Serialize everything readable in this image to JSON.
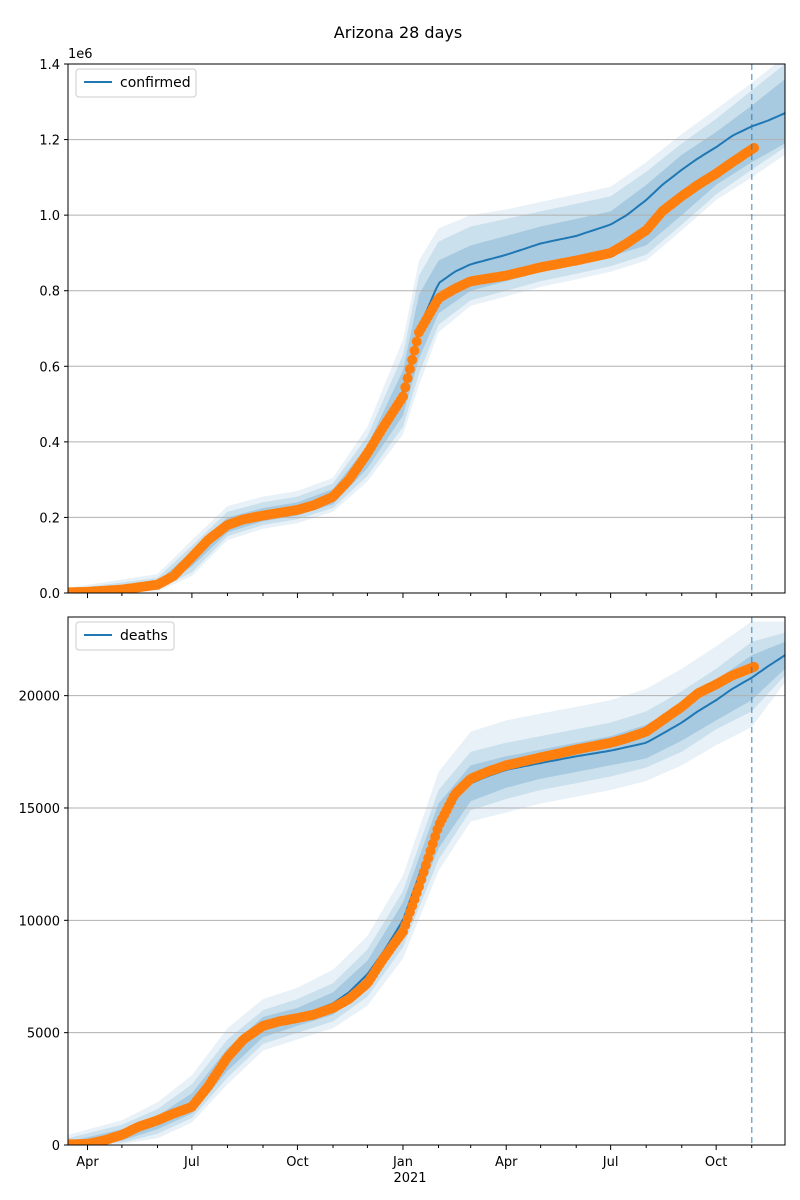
{
  "title": "Arizona 28 days",
  "colors": {
    "model": "#1f77b4",
    "observed": "#ff7f0e",
    "band": "#1f77b4",
    "grid": "#b0b0b0",
    "vline": "#1f77b4"
  },
  "chart_data": [
    {
      "type": "line",
      "name": "confirmed",
      "legend": "confirmed",
      "legend_placement": "upper-left",
      "offset_label": "1e6",
      "grid": "horizontal",
      "xlim": [
        "2020-03-15",
        "2021-11-30"
      ],
      "ylim": [
        0,
        1400000
      ],
      "yticks": [
        0,
        200000,
        400000,
        600000,
        800000,
        1000000,
        1200000,
        1400000
      ],
      "ytick_labels": [
        "0.0",
        "0.2",
        "0.4",
        "0.6",
        "0.8",
        "1.0",
        "1.2",
        "1.4"
      ],
      "forecast_start": "2021-11-01",
      "model": {
        "dates": [
          "2020-03-15",
          "2020-05-01",
          "2020-06-01",
          "2020-07-01",
          "2020-07-15",
          "2020-08-01",
          "2020-08-15",
          "2020-09-01",
          "2020-10-01",
          "2020-11-01",
          "2020-11-15",
          "2020-12-01",
          "2020-12-15",
          "2021-01-01",
          "2021-01-15",
          "2021-02-01",
          "2021-02-15",
          "2021-03-01",
          "2021-04-01",
          "2021-05-01",
          "2021-06-01",
          "2021-07-01",
          "2021-07-15",
          "2021-08-01",
          "2021-08-15",
          "2021-09-01",
          "2021-09-15",
          "2021-10-01",
          "2021-10-15",
          "2021-11-01",
          "2021-11-15",
          "2021-11-30"
        ],
        "values": [
          3000,
          6000,
          20000,
          90000,
          130000,
          175000,
          195000,
          205000,
          220000,
          255000,
          300000,
          360000,
          430000,
          530000,
          700000,
          820000,
          850000,
          870000,
          895000,
          925000,
          945000,
          975000,
          1000000,
          1040000,
          1080000,
          1120000,
          1150000,
          1180000,
          1210000,
          1235000,
          1250000,
          1270000
        ]
      },
      "bands": [
        {
          "dates": [
            "2020-03-15",
            "2020-06-01",
            "2020-07-01",
            "2020-08-01",
            "2020-09-01",
            "2020-10-01",
            "2020-11-01",
            "2020-12-01",
            "2021-01-01",
            "2021-01-15",
            "2021-02-01",
            "2021-03-01",
            "2021-04-01",
            "2021-05-01",
            "2021-06-01",
            "2021-07-01",
            "2021-08-01",
            "2021-09-01",
            "2021-10-01",
            "2021-11-01",
            "2021-11-30"
          ],
          "lower": [
            1000,
            12000,
            70000,
            160000,
            190000,
            205000,
            235000,
            330000,
            470000,
            620000,
            740000,
            800000,
            825000,
            850000,
            870000,
            890000,
            920000,
            1000000,
            1080000,
            1140000,
            1190000
          ],
          "upper": [
            6000,
            30000,
            110000,
            200000,
            225000,
            240000,
            275000,
            390000,
            590000,
            790000,
            880000,
            920000,
            945000,
            970000,
            990000,
            1010000,
            1080000,
            1160000,
            1220000,
            1290000,
            1360000
          ]
        },
        {
          "dates": [
            "2020-03-15",
            "2020-06-01",
            "2020-07-01",
            "2020-08-01",
            "2020-09-01",
            "2020-10-01",
            "2020-11-01",
            "2020-12-01",
            "2021-01-01",
            "2021-01-15",
            "2021-02-01",
            "2021-03-01",
            "2021-04-01",
            "2021-05-01",
            "2021-06-01",
            "2021-07-01",
            "2021-08-01",
            "2021-09-01",
            "2021-10-01",
            "2021-11-01",
            "2021-11-30"
          ],
          "lower": [
            0,
            8000,
            55000,
            150000,
            180000,
            195000,
            225000,
            310000,
            440000,
            580000,
            710000,
            775000,
            800000,
            825000,
            845000,
            865000,
            895000,
            975000,
            1055000,
            1120000,
            1180000
          ],
          "upper": [
            10000,
            40000,
            125000,
            215000,
            240000,
            255000,
            290000,
            415000,
            630000,
            840000,
            930000,
            970000,
            990000,
            1010000,
            1030000,
            1050000,
            1115000,
            1190000,
            1255000,
            1330000,
            1400000
          ]
        },
        {
          "dates": [
            "2020-03-15",
            "2020-06-01",
            "2020-07-01",
            "2020-08-01",
            "2020-09-01",
            "2020-10-01",
            "2020-11-01",
            "2020-12-01",
            "2021-01-01",
            "2021-01-15",
            "2021-02-01",
            "2021-03-01",
            "2021-04-01",
            "2021-05-01",
            "2021-06-01",
            "2021-07-01",
            "2021-08-01",
            "2021-09-01",
            "2021-10-01",
            "2021-11-01",
            "2021-11-30"
          ],
          "lower": [
            0,
            4000,
            45000,
            140000,
            170000,
            185000,
            215000,
            295000,
            420000,
            550000,
            690000,
            760000,
            785000,
            810000,
            830000,
            850000,
            880000,
            960000,
            1040000,
            1100000,
            1160000
          ],
          "upper": [
            14000,
            50000,
            140000,
            230000,
            255000,
            270000,
            305000,
            440000,
            670000,
            880000,
            965000,
            1000000,
            1015000,
            1035000,
            1055000,
            1075000,
            1140000,
            1215000,
            1280000,
            1350000,
            1420000
          ]
        }
      ],
      "observed": {
        "dates": [
          "2020-03-15",
          "2020-04-01",
          "2020-05-01",
          "2020-06-01",
          "2020-06-15",
          "2020-07-01",
          "2020-07-15",
          "2020-08-01",
          "2020-08-15",
          "2020-09-01",
          "2020-09-15",
          "2020-10-01",
          "2020-10-15",
          "2020-11-01",
          "2020-11-15",
          "2020-12-01",
          "2020-12-15",
          "2021-01-01",
          "2021-01-15",
          "2021-02-01",
          "2021-02-15",
          "2021-03-01",
          "2021-04-01",
          "2021-05-01",
          "2021-06-01",
          "2021-07-01",
          "2021-07-15",
          "2021-08-01",
          "2021-08-15",
          "2021-09-01",
          "2021-09-15",
          "2021-10-01",
          "2021-10-15",
          "2021-11-04"
        ],
        "values": [
          2000,
          3000,
          9000,
          22000,
          45000,
          95000,
          140000,
          180000,
          195000,
          205000,
          212000,
          220000,
          232000,
          255000,
          300000,
          370000,
          440000,
          520000,
          690000,
          780000,
          805000,
          825000,
          840000,
          862000,
          880000,
          900000,
          925000,
          960000,
          1010000,
          1050000,
          1080000,
          1110000,
          1140000,
          1180000
        ]
      }
    },
    {
      "type": "line",
      "name": "deaths",
      "legend": "deaths",
      "legend_placement": "upper-left",
      "grid": "horizontal",
      "xlim": [
        "2020-03-15",
        "2021-11-30"
      ],
      "ylim": [
        0,
        23500
      ],
      "yticks": [
        0,
        5000,
        10000,
        15000,
        20000
      ],
      "ytick_labels": [
        "0",
        "5000",
        "10000",
        "15000",
        "20000"
      ],
      "xticks": [
        "2020-04-01",
        "2020-07-01",
        "2020-10-01",
        "2021-01-01",
        "2021-04-01",
        "2021-07-01",
        "2021-10-01"
      ],
      "xtick_labels": [
        "Apr",
        "Jul",
        "Oct",
        "Jan",
        "Apr",
        "Jul",
        "Oct"
      ],
      "year_label": "2021",
      "forecast_start": "2021-11-01",
      "model": {
        "dates": [
          "2020-03-15",
          "2020-04-15",
          "2020-05-15",
          "2020-06-15",
          "2020-07-01",
          "2020-07-15",
          "2020-08-01",
          "2020-08-15",
          "2020-09-01",
          "2020-10-01",
          "2020-11-01",
          "2020-11-15",
          "2020-12-01",
          "2020-12-15",
          "2021-01-01",
          "2021-01-15",
          "2021-02-01",
          "2021-02-15",
          "2021-03-01",
          "2021-03-15",
          "2021-04-01",
          "2021-05-01",
          "2021-06-01",
          "2021-07-01",
          "2021-08-01",
          "2021-08-15",
          "2021-09-01",
          "2021-09-15",
          "2021-10-01",
          "2021-10-15",
          "2021-11-01",
          "2021-11-15",
          "2021-11-30"
        ],
        "values": [
          50,
          200,
          700,
          1300,
          1800,
          2600,
          3800,
          4600,
          5200,
          5700,
          6300,
          6800,
          7600,
          8600,
          10000,
          12000,
          14200,
          15400,
          16100,
          16400,
          16700,
          17000,
          17300,
          17550,
          17900,
          18300,
          18800,
          19300,
          19800,
          20300,
          20800,
          21300,
          21800
        ]
      },
      "bands": [
        {
          "dates": [
            "2020-03-15",
            "2020-05-01",
            "2020-06-01",
            "2020-07-01",
            "2020-08-01",
            "2020-09-01",
            "2020-10-01",
            "2020-11-01",
            "2020-12-01",
            "2021-01-01",
            "2021-02-01",
            "2021-03-01",
            "2021-04-01",
            "2021-05-01",
            "2021-06-01",
            "2021-07-01",
            "2021-08-01",
            "2021-09-01",
            "2021-10-01",
            "2021-11-01",
            "2021-11-30"
          ],
          "lower": [
            0,
            200,
            700,
            1400,
            3300,
            4800,
            5300,
            5800,
            7000,
            9300,
            13200,
            15300,
            15900,
            16300,
            16600,
            16900,
            17200,
            18000,
            18900,
            19800,
            21200
          ],
          "upper": [
            150,
            700,
            1300,
            2300,
            4300,
            5700,
            6100,
            6800,
            8200,
            10800,
            15200,
            16900,
            17300,
            17600,
            17900,
            18200,
            18700,
            19600,
            20700,
            21800,
            22400
          ]
        },
        {
          "dates": [
            "2020-03-15",
            "2020-05-01",
            "2020-06-01",
            "2020-07-01",
            "2020-08-01",
            "2020-09-01",
            "2020-10-01",
            "2020-11-01",
            "2020-12-01",
            "2021-01-01",
            "2021-02-01",
            "2021-03-01",
            "2021-04-01",
            "2021-05-01",
            "2021-06-01",
            "2021-07-01",
            "2021-08-01",
            "2021-09-01",
            "2021-10-01",
            "2021-11-01",
            "2021-11-30"
          ],
          "lower": [
            0,
            100,
            500,
            1200,
            3000,
            4500,
            5000,
            5500,
            6600,
            8800,
            12700,
            14900,
            15400,
            15800,
            16100,
            16400,
            16800,
            17500,
            18500,
            19300,
            20900
          ],
          "upper": [
            300,
            900,
            1600,
            2700,
            4700,
            6000,
            6500,
            7200,
            8700,
            11300,
            15800,
            17500,
            17900,
            18200,
            18500,
            18800,
            19300,
            20200,
            21200,
            22400,
            22800
          ]
        },
        {
          "dates": [
            "2020-03-15",
            "2020-05-01",
            "2020-06-01",
            "2020-07-01",
            "2020-08-01",
            "2020-09-01",
            "2020-10-01",
            "2020-11-01",
            "2020-12-01",
            "2021-01-01",
            "2021-02-01",
            "2021-03-01",
            "2021-04-01",
            "2021-05-01",
            "2021-06-01",
            "2021-07-01",
            "2021-08-01",
            "2021-09-01",
            "2021-10-01",
            "2021-11-01",
            "2021-11-30"
          ],
          "lower": [
            0,
            50,
            300,
            1000,
            2700,
            4200,
            4700,
            5200,
            6200,
            8300,
            12200,
            14400,
            14800,
            15200,
            15500,
            15800,
            16200,
            16900,
            17800,
            18600,
            20600
          ],
          "upper": [
            450,
            1100,
            1900,
            3100,
            5200,
            6500,
            7000,
            7800,
            9300,
            12000,
            16600,
            18400,
            18900,
            19200,
            19500,
            19800,
            20300,
            21200,
            22200,
            23300,
            23300
          ]
        }
      ],
      "observed": {
        "dates": [
          "2020-03-15",
          "2020-04-01",
          "2020-04-15",
          "2020-05-01",
          "2020-05-15",
          "2020-06-01",
          "2020-06-15",
          "2020-07-01",
          "2020-07-15",
          "2020-08-01",
          "2020-08-15",
          "2020-09-01",
          "2020-09-15",
          "2020-10-01",
          "2020-10-15",
          "2020-11-01",
          "2020-11-15",
          "2020-12-01",
          "2020-12-15",
          "2021-01-01",
          "2021-01-15",
          "2021-02-01",
          "2021-02-15",
          "2021-03-01",
          "2021-03-15",
          "2021-04-01",
          "2021-05-01",
          "2021-06-01",
          "2021-07-01",
          "2021-07-15",
          "2021-08-01",
          "2021-08-15",
          "2021-09-01",
          "2021-09-15",
          "2021-10-01",
          "2021-10-15",
          "2021-11-04"
        ],
        "values": [
          30,
          50,
          200,
          450,
          800,
          1100,
          1400,
          1700,
          2600,
          3900,
          4700,
          5300,
          5500,
          5650,
          5800,
          6100,
          6500,
          7200,
          8300,
          9500,
          11500,
          14200,
          15600,
          16300,
          16600,
          16900,
          17250,
          17600,
          17900,
          18100,
          18400,
          18900,
          19500,
          20100,
          20500,
          20900,
          21300
        ]
      }
    }
  ]
}
